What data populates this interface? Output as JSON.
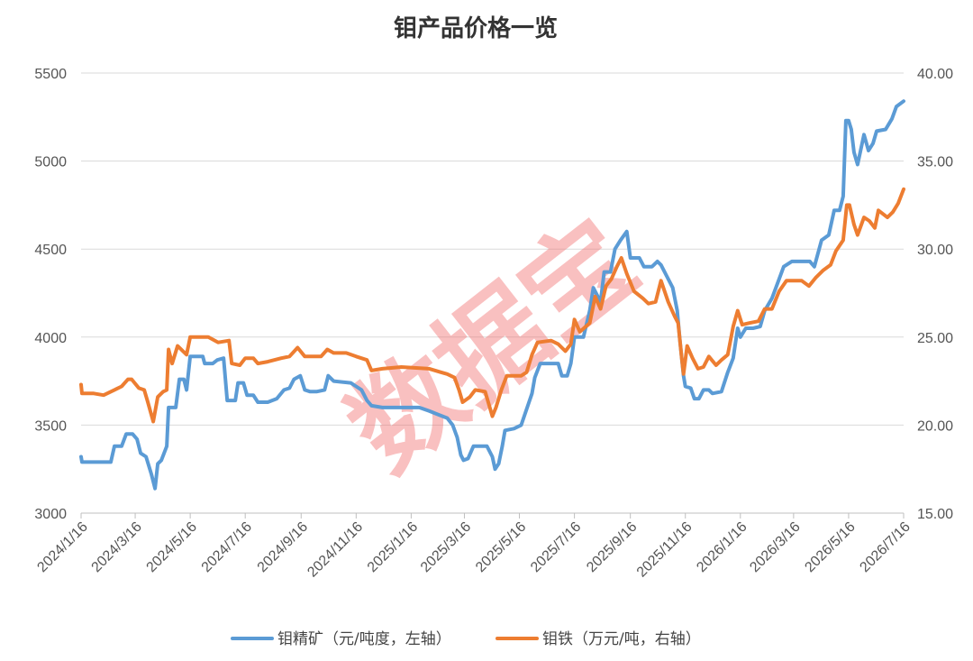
{
  "chart_data": {
    "type": "line",
    "title": "钼产品价格一览",
    "watermark": "数据宝",
    "x_tick_labels": [
      "2024/1/16",
      "2024/3/16",
      "2024/5/16",
      "2024/7/16",
      "2024/9/16",
      "2024/11/16",
      "2025/1/16",
      "2025/3/16",
      "2025/5/16",
      "2025/7/16",
      "2025/9/16",
      "2025/11/16",
      "2026/1/16",
      "2026/3/16",
      "2026/5/16",
      "2026/7/16"
    ],
    "y_left": {
      "min": 3000,
      "max": 5500,
      "ticks": [
        "3000",
        "3500",
        "4000",
        "4500",
        "5000",
        "5500"
      ]
    },
    "y_right": {
      "min": 15,
      "max": 40,
      "ticks": [
        "15.00",
        "20.00",
        "25.00",
        "30.00",
        "35.00",
        "40.00"
      ]
    },
    "grid": true,
    "legend_position": "bottom",
    "series": [
      {
        "name": "钼精矿（元/吨度，左轴）",
        "axis": "left",
        "color": "#5b9bd5",
        "points": [
          [
            "2024/1/16",
            3320
          ],
          [
            "2024/1/17",
            3290
          ],
          [
            "2024/2/5",
            3290
          ],
          [
            "2024/2/10",
            3290
          ],
          [
            "2024/2/18",
            3290
          ],
          [
            "2024/2/22",
            3380
          ],
          [
            "2024/3/1",
            3380
          ],
          [
            "2024/3/6",
            3450
          ],
          [
            "2024/3/13",
            3450
          ],
          [
            "2024/3/18",
            3420
          ],
          [
            "2024/3/22",
            3340
          ],
          [
            "2024/3/28",
            3320
          ],
          [
            "2024/4/3",
            3220
          ],
          [
            "2024/4/7",
            3140
          ],
          [
            "2024/4/10",
            3280
          ],
          [
            "2024/4/14",
            3300
          ],
          [
            "2024/4/20",
            3380
          ],
          [
            "2024/4/22",
            3600
          ],
          [
            "2024/4/30",
            3600
          ],
          [
            "2024/5/4",
            3760
          ],
          [
            "2024/5/9",
            3760
          ],
          [
            "2024/5/12",
            3700
          ],
          [
            "2024/5/16",
            3890
          ],
          [
            "2024/5/30",
            3890
          ],
          [
            "2024/6/1",
            3850
          ],
          [
            "2024/6/10",
            3850
          ],
          [
            "2024/6/15",
            3870
          ],
          [
            "2024/6/22",
            3880
          ],
          [
            "2024/6/26",
            3640
          ],
          [
            "2024/7/1",
            3640
          ],
          [
            "2024/7/5",
            3640
          ],
          [
            "2024/7/8",
            3740
          ],
          [
            "2024/7/14",
            3740
          ],
          [
            "2024/7/18",
            3670
          ],
          [
            "2024/7/25",
            3670
          ],
          [
            "2024/7/30",
            3630
          ],
          [
            "2024/8/5",
            3630
          ],
          [
            "2024/8/10",
            3630
          ],
          [
            "2024/8/20",
            3650
          ],
          [
            "2024/8/28",
            3700
          ],
          [
            "2024/9/3",
            3710
          ],
          [
            "2024/9/8",
            3760
          ],
          [
            "2024/9/15",
            3780
          ],
          [
            "2024/9/20",
            3700
          ],
          [
            "2024/9/26",
            3690
          ],
          [
            "2024/10/3",
            3690
          ],
          [
            "2024/10/12",
            3700
          ],
          [
            "2024/10/16",
            3780
          ],
          [
            "2024/10/22",
            3750
          ],
          [
            "2024/11/10",
            3740
          ],
          [
            "2024/11/16",
            3720
          ],
          [
            "2024/11/22",
            3700
          ],
          [
            "2024/11/28",
            3640
          ],
          [
            "2024/12/3",
            3610
          ],
          [
            "2024/12/15",
            3600
          ],
          [
            "2025/1/15",
            3600
          ],
          [
            "2025/1/25",
            3600
          ],
          [
            "2025/2/5",
            3580
          ],
          [
            "2025/2/15",
            3560
          ],
          [
            "2025/2/25",
            3540
          ],
          [
            "2025/3/3",
            3500
          ],
          [
            "2025/3/8",
            3430
          ],
          [
            "2025/3/12",
            3330
          ],
          [
            "2025/3/15",
            3300
          ],
          [
            "2025/3/20",
            3310
          ],
          [
            "2025/3/26",
            3380
          ],
          [
            "2025/4/10",
            3380
          ],
          [
            "2025/4/16",
            3320
          ],
          [
            "2025/4/19",
            3250
          ],
          [
            "2025/4/23",
            3280
          ],
          [
            "2025/4/27",
            3380
          ],
          [
            "2025/4/30",
            3470
          ],
          [
            "2025/5/10",
            3480
          ],
          [
            "2025/5/18",
            3500
          ],
          [
            "2025/5/26",
            3620
          ],
          [
            "2025/5/30",
            3680
          ],
          [
            "2025/6/2",
            3770
          ],
          [
            "2025/6/8",
            3850
          ],
          [
            "2025/6/28",
            3850
          ],
          [
            "2025/7/2",
            3780
          ],
          [
            "2025/7/8",
            3780
          ],
          [
            "2025/7/12",
            3850
          ],
          [
            "2025/7/16",
            4000
          ],
          [
            "2025/7/20",
            4000
          ],
          [
            "2025/7/26",
            4000
          ],
          [
            "2025/8/2",
            4150
          ],
          [
            "2025/8/6",
            4280
          ],
          [
            "2025/8/14",
            4200
          ],
          [
            "2025/8/18",
            4370
          ],
          [
            "2025/8/25",
            4370
          ],
          [
            "2025/8/30",
            4500
          ],
          [
            "2025/9/5",
            4550
          ],
          [
            "2025/9/12",
            4600
          ],
          [
            "2025/9/16",
            4450
          ],
          [
            "2025/9/26",
            4450
          ],
          [
            "2025/10/1",
            4400
          ],
          [
            "2025/10/10",
            4400
          ],
          [
            "2025/10/16",
            4430
          ],
          [
            "2025/10/20",
            4410
          ],
          [
            "2025/10/26",
            4350
          ],
          [
            "2025/11/2",
            4280
          ],
          [
            "2025/11/7",
            4150
          ],
          [
            "2025/11/10",
            3980
          ],
          [
            "2025/11/14",
            3780
          ],
          [
            "2025/11/16",
            3720
          ],
          [
            "2025/11/22",
            3710
          ],
          [
            "2025/11/26",
            3650
          ],
          [
            "2025/12/1",
            3650
          ],
          [
            "2025/12/6",
            3700
          ],
          [
            "2025/12/12",
            3700
          ],
          [
            "2025/12/16",
            3680
          ],
          [
            "2025/12/26",
            3690
          ],
          [
            "2026/1/2",
            3800
          ],
          [
            "2026/1/8",
            3880
          ],
          [
            "2026/1/13",
            4050
          ],
          [
            "2026/1/16",
            4000
          ],
          [
            "2026/1/22",
            4050
          ],
          [
            "2026/1/30",
            4050
          ],
          [
            "2026/2/7",
            4060
          ],
          [
            "2026/2/12",
            4150
          ],
          [
            "2026/2/20",
            4220
          ],
          [
            "2026/2/28",
            4330
          ],
          [
            "2026/3/5",
            4400
          ],
          [
            "2026/3/14",
            4430
          ],
          [
            "2026/3/25",
            4430
          ],
          [
            "2026/4/3",
            4430
          ],
          [
            "2026/4/8",
            4400
          ],
          [
            "2026/4/16",
            4550
          ],
          [
            "2026/4/24",
            4580
          ],
          [
            "2026/4/30",
            4720
          ],
          [
            "2026/5/6",
            4720
          ],
          [
            "2026/5/10",
            4800
          ],
          [
            "2026/5/13",
            5230
          ],
          [
            "2026/5/16",
            5230
          ],
          [
            "2026/5/19",
            5180
          ],
          [
            "2026/5/22",
            5050
          ],
          [
            "2026/5/26",
            4980
          ],
          [
            "2026/6/2",
            5150
          ],
          [
            "2026/6/7",
            5060
          ],
          [
            "2026/6/12",
            5100
          ],
          [
            "2026/6/16",
            5170
          ],
          [
            "2026/6/26",
            5180
          ],
          [
            "2026/7/3",
            5240
          ],
          [
            "2026/7/8",
            5310
          ],
          [
            "2026/7/16",
            5340
          ]
        ]
      },
      {
        "name": "钼铁（万元/吨，右轴）",
        "axis": "right",
        "color": "#ed7d31",
        "points": [
          [
            "2024/1/16",
            22.3
          ],
          [
            "2024/1/17",
            21.8
          ],
          [
            "2024/1/30",
            21.8
          ],
          [
            "2024/2/10",
            21.7
          ],
          [
            "2024/2/22",
            22.0
          ],
          [
            "2024/3/1",
            22.2
          ],
          [
            "2024/3/8",
            22.6
          ],
          [
            "2024/3/12",
            22.6
          ],
          [
            "2024/3/20",
            22.1
          ],
          [
            "2024/3/26",
            22.0
          ],
          [
            "2024/3/30",
            21.3
          ],
          [
            "2024/4/5",
            20.2
          ],
          [
            "2024/4/10",
            21.6
          ],
          [
            "2024/4/16",
            21.9
          ],
          [
            "2024/4/20",
            22.0
          ],
          [
            "2024/4/22",
            24.3
          ],
          [
            "2024/4/26",
            23.5
          ],
          [
            "2024/5/2",
            24.5
          ],
          [
            "2024/5/8",
            24.2
          ],
          [
            "2024/5/12",
            24.0
          ],
          [
            "2024/5/16",
            25.0
          ],
          [
            "2024/6/5",
            25.0
          ],
          [
            "2024/6/16",
            24.7
          ],
          [
            "2024/6/28",
            24.8
          ],
          [
            "2024/7/1",
            23.5
          ],
          [
            "2024/7/10",
            23.4
          ],
          [
            "2024/7/16",
            23.8
          ],
          [
            "2024/7/25",
            23.8
          ],
          [
            "2024/7/30",
            23.5
          ],
          [
            "2024/8/10",
            23.6
          ],
          [
            "2024/8/25",
            23.8
          ],
          [
            "2024/9/3",
            23.9
          ],
          [
            "2024/9/12",
            24.4
          ],
          [
            "2024/9/20",
            23.9
          ],
          [
            "2024/9/30",
            23.9
          ],
          [
            "2024/10/8",
            23.9
          ],
          [
            "2024/10/15",
            24.3
          ],
          [
            "2024/10/22",
            24.1
          ],
          [
            "2024/11/5",
            24.1
          ],
          [
            "2024/11/16",
            23.9
          ],
          [
            "2024/11/28",
            23.7
          ],
          [
            "2024/12/3",
            23.1
          ],
          [
            "2024/12/15",
            23.2
          ],
          [
            "2025/1/5",
            23.3
          ],
          [
            "2025/2/5",
            23.2
          ],
          [
            "2025/2/18",
            23.0
          ],
          [
            "2025/2/25",
            22.9
          ],
          [
            "2025/3/5",
            22.7
          ],
          [
            "2025/3/10",
            22.0
          ],
          [
            "2025/3/14",
            21.3
          ],
          [
            "2025/3/22",
            21.6
          ],
          [
            "2025/3/28",
            22.0
          ],
          [
            "2025/4/8",
            21.9
          ],
          [
            "2025/4/16",
            20.5
          ],
          [
            "2025/4/20",
            21.0
          ],
          [
            "2025/4/26",
            22.0
          ],
          [
            "2025/5/2",
            22.8
          ],
          [
            "2025/5/18",
            22.8
          ],
          [
            "2025/5/24",
            23.0
          ],
          [
            "2025/5/30",
            24.0
          ],
          [
            "2025/6/5",
            24.7
          ],
          [
            "2025/6/20",
            24.8
          ],
          [
            "2025/6/28",
            24.6
          ],
          [
            "2025/7/6",
            24.2
          ],
          [
            "2025/7/12",
            24.6
          ],
          [
            "2025/7/16",
            26.0
          ],
          [
            "2025/7/22",
            25.3
          ],
          [
            "2025/8/2",
            25.8
          ],
          [
            "2025/8/8",
            27.3
          ],
          [
            "2025/8/14",
            26.6
          ],
          [
            "2025/8/20",
            27.9
          ],
          [
            "2025/8/26",
            28.3
          ],
          [
            "2025/9/1",
            29.0
          ],
          [
            "2025/9/6",
            29.5
          ],
          [
            "2025/9/12",
            28.6
          ],
          [
            "2025/9/20",
            27.6
          ],
          [
            "2025/9/30",
            27.2
          ],
          [
            "2025/10/6",
            26.9
          ],
          [
            "2025/10/14",
            27.0
          ],
          [
            "2025/10/20",
            28.2
          ],
          [
            "2025/10/28",
            27.0
          ],
          [
            "2025/11/4",
            26.2
          ],
          [
            "2025/11/8",
            25.8
          ],
          [
            "2025/11/12",
            23.8
          ],
          [
            "2025/11/14",
            22.9
          ],
          [
            "2025/11/18",
            24.5
          ],
          [
            "2025/11/24",
            23.8
          ],
          [
            "2025/11/30",
            23.2
          ],
          [
            "2025/12/6",
            23.3
          ],
          [
            "2025/12/12",
            23.9
          ],
          [
            "2025/12/20",
            23.4
          ],
          [
            "2025/12/26",
            23.7
          ],
          [
            "2026/1/2",
            24.0
          ],
          [
            "2026/1/8",
            25.6
          ],
          [
            "2026/1/13",
            26.5
          ],
          [
            "2026/1/18",
            25.7
          ],
          [
            "2026/1/26",
            25.8
          ],
          [
            "2026/2/5",
            25.9
          ],
          [
            "2026/2/12",
            26.6
          ],
          [
            "2026/2/20",
            26.6
          ],
          [
            "2026/2/28",
            27.6
          ],
          [
            "2026/3/8",
            28.2
          ],
          [
            "2026/3/25",
            28.2
          ],
          [
            "2026/4/2",
            27.9
          ],
          [
            "2026/4/10",
            28.4
          ],
          [
            "2026/4/18",
            28.8
          ],
          [
            "2026/4/26",
            29.1
          ],
          [
            "2026/5/2",
            29.9
          ],
          [
            "2026/5/10",
            30.5
          ],
          [
            "2026/5/14",
            32.5
          ],
          [
            "2026/5/17",
            32.5
          ],
          [
            "2026/5/22",
            31.4
          ],
          [
            "2026/5/26",
            30.8
          ],
          [
            "2026/6/2",
            31.8
          ],
          [
            "2026/6/8",
            31.6
          ],
          [
            "2026/6/14",
            31.2
          ],
          [
            "2026/6/18",
            32.2
          ],
          [
            "2026/6/28",
            31.8
          ],
          [
            "2026/7/4",
            32.1
          ],
          [
            "2026/7/10",
            32.6
          ],
          [
            "2026/7/16",
            33.4
          ]
        ]
      }
    ]
  }
}
